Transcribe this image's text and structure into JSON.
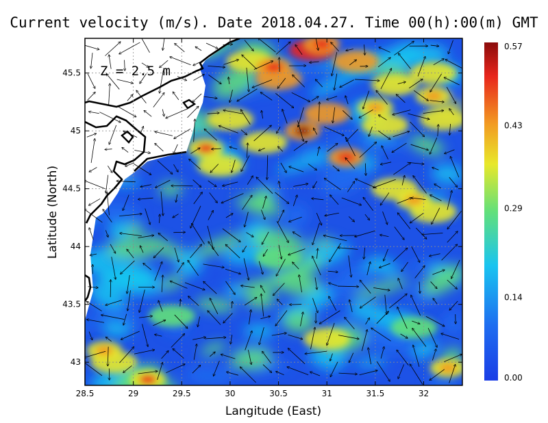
{
  "title": "Current velocity (m/s). Date 2018.04.27. Time 00(h):00(m) GMT",
  "depth_label": "Z = 2.5 m",
  "xlabel": "Langitude (East)",
  "ylabel": "Latitude (North)",
  "x_ticks": [
    "28.5",
    "29",
    "29.5",
    "30",
    "30.5",
    "31",
    "31.5",
    "32"
  ],
  "y_ticks": [
    "43",
    "43.5",
    "44",
    "44.5",
    "45",
    "45.5"
  ],
  "colorbar": {
    "ticks": [
      "0.00",
      "0.14",
      "0.29",
      "0.43",
      "0.57"
    ],
    "min": 0,
    "max": 0.57,
    "colors": [
      "#1a3de6",
      "#1e6cf0",
      "#19c4f0",
      "#62e07a",
      "#e8e82a",
      "#f29a22",
      "#e8261c",
      "#8a0b0b"
    ]
  },
  "chart_data": {
    "type": "heatmap",
    "title": "Current velocity (m/s). Date 2018.04.27. Time 00(h):00(m) GMT",
    "xlabel": "Langitude (East)",
    "ylabel": "Latitude (North)",
    "xlim": [
      28.5,
      32.4
    ],
    "ylim": [
      42.8,
      45.8
    ],
    "x_ticks": [
      28.5,
      29,
      29.5,
      30,
      30.5,
      31,
      31.5,
      32
    ],
    "y_ticks": [
      43,
      43.5,
      44,
      44.5,
      45,
      45.5
    ],
    "value_range": [
      0,
      0.57
    ],
    "grid": true,
    "colorbar_ticks": [
      0.0,
      0.14,
      0.29,
      0.43,
      0.57
    ],
    "hotspots": [
      {
        "lon": 30.75,
        "lat": 45.0,
        "value": 0.55
      },
      {
        "lon": 31.2,
        "lat": 44.77,
        "value": 0.52
      },
      {
        "lon": 30.45,
        "lat": 45.55,
        "value": 0.48
      },
      {
        "lon": 30.95,
        "lat": 45.75,
        "value": 0.5
      },
      {
        "lon": 29.75,
        "lat": 44.85,
        "value": 0.45
      },
      {
        "lon": 31.5,
        "lat": 45.2,
        "value": 0.42
      },
      {
        "lon": 32.1,
        "lat": 45.3,
        "value": 0.42
      },
      {
        "lon": 31.9,
        "lat": 44.4,
        "value": 0.42
      },
      {
        "lon": 28.7,
        "lat": 43.1,
        "value": 0.43
      },
      {
        "lon": 32.25,
        "lat": 42.95,
        "value": 0.43
      },
      {
        "lon": 29.15,
        "lat": 42.85,
        "value": 0.45
      }
    ]
  }
}
